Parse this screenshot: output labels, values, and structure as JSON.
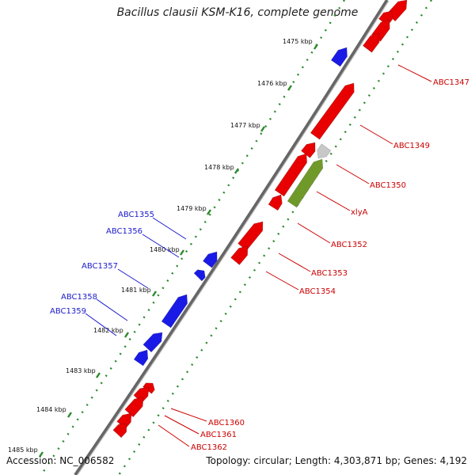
{
  "header": {
    "title": "Bacillus clausii KSM-K16, complete genome"
  },
  "footer": {
    "accession": "Accession: NC_006582",
    "summary": "Topology: circular; Length: 4,303,871 bp; Genes: 4,192"
  },
  "colors": {
    "forward_gene": "#e80000",
    "reverse_gene": "#1a1ae6",
    "highlight_gene": "#6f9a2a",
    "highlight_shadow": "#c8c8c8",
    "backbone": "#666666",
    "ticks": "#2a8a2a",
    "forward_label": "#cc0000",
    "reverse_label": "#1a1acc"
  },
  "scale": {
    "ticks": [
      {
        "kbp": 1475,
        "label": "1475 kbp"
      },
      {
        "kbp": 1476,
        "label": "1476 kbp"
      },
      {
        "kbp": 1477,
        "label": "1477 kbp"
      },
      {
        "kbp": 1478,
        "label": "1478 kbp"
      },
      {
        "kbp": 1479,
        "label": "1479 kbp"
      },
      {
        "kbp": 1480,
        "label": "1480 kbp"
      },
      {
        "kbp": 1481,
        "label": "1481 kbp"
      },
      {
        "kbp": 1482,
        "label": "1482 kbp"
      },
      {
        "kbp": 1483,
        "label": "1483 kbp"
      },
      {
        "kbp": 1484,
        "label": "1484 kbp"
      },
      {
        "kbp": 1485,
        "label": "1485 kbp"
      }
    ]
  },
  "forward_labels": [
    {
      "name": "ABC1347"
    },
    {
      "name": "ABC1349"
    },
    {
      "name": "ABC1350"
    },
    {
      "name": "xlyA"
    },
    {
      "name": "ABC1352"
    },
    {
      "name": "ABC1353"
    },
    {
      "name": "ABC1354"
    },
    {
      "name": "ABC1360"
    },
    {
      "name": "ABC1361"
    },
    {
      "name": "ABC1362"
    }
  ],
  "reverse_labels": [
    {
      "name": "ABC1355"
    },
    {
      "name": "ABC1356"
    },
    {
      "name": "ABC1357"
    },
    {
      "name": "ABC1358"
    },
    {
      "name": "ABC1359"
    }
  ]
}
